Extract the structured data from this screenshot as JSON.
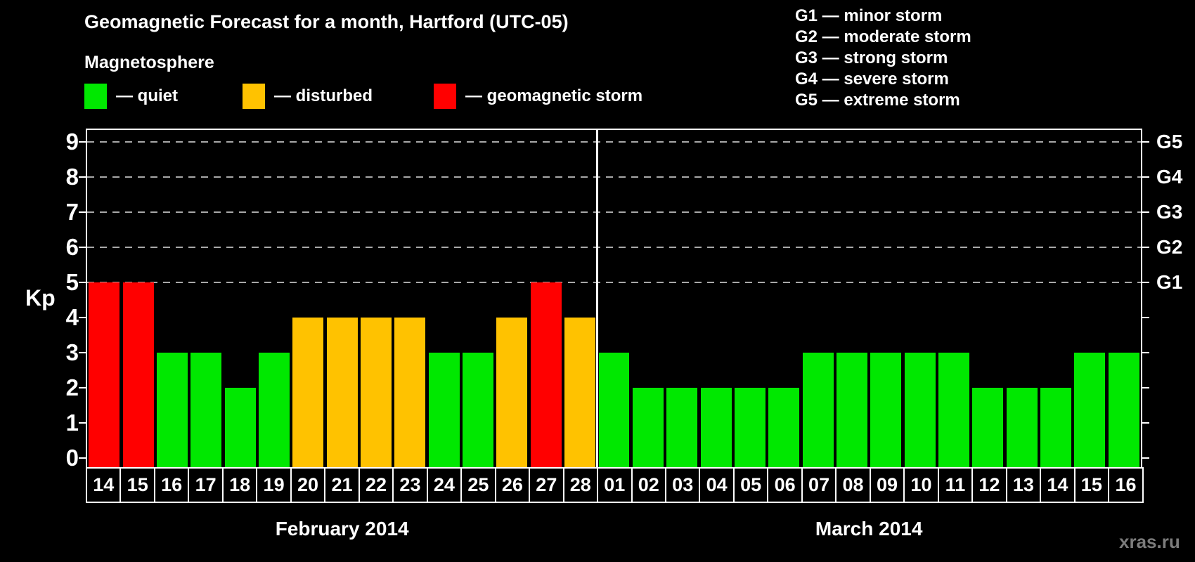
{
  "title": "Geomagnetic Forecast for a month, Hartford (UTC-05)",
  "magnetosphere_legend": {
    "heading": "Magnetosphere",
    "items": [
      {
        "name": "quiet",
        "label": "— quiet",
        "color": "#00E800"
      },
      {
        "name": "disturbed",
        "label": "— disturbed",
        "color": "#FFC200"
      },
      {
        "name": "storm",
        "label": "— geomagnetic storm",
        "color": "#FF0000"
      }
    ]
  },
  "storm_scale_legend": [
    "G1 — minor storm",
    "G2 — moderate storm",
    "G3 — strong storm",
    "G4 — severe storm",
    "G5 — extreme storm"
  ],
  "watermark": "xras.ru",
  "colors": {
    "background": "#000000",
    "axis": "#FFFFFF",
    "gridline": "#A8A8A8",
    "watermark": "#7C7C7C"
  },
  "chart_data": {
    "type": "bar",
    "title": "Geomagnetic Forecast for a month, Hartford (UTC-05)",
    "ylabel": "Kp",
    "ylim": [
      0,
      9
    ],
    "y_ticks": [
      0,
      1,
      2,
      3,
      4,
      5,
      6,
      7,
      8,
      9
    ],
    "gridlines_at": [
      5,
      6,
      7,
      8,
      9
    ],
    "grid": "dashed horizontal lines at G-storm levels only",
    "legend_position": "top",
    "right_axis_labels": [
      {
        "text": "G1",
        "level": 5
      },
      {
        "text": "G2",
        "level": 6
      },
      {
        "text": "G3",
        "level": 7
      },
      {
        "text": "G4",
        "level": 8
      },
      {
        "text": "G5",
        "level": 9
      }
    ],
    "status_colors": {
      "quiet": "#00E800",
      "disturbed": "#FFC200",
      "storm": "#FF0000"
    },
    "months": [
      {
        "label": "February 2014",
        "bars": [
          {
            "day": "14",
            "kp": 5,
            "status": "storm"
          },
          {
            "day": "15",
            "kp": 5,
            "status": "storm"
          },
          {
            "day": "16",
            "kp": 3,
            "status": "quiet"
          },
          {
            "day": "17",
            "kp": 3,
            "status": "quiet"
          },
          {
            "day": "18",
            "kp": 2,
            "status": "quiet"
          },
          {
            "day": "19",
            "kp": 3,
            "status": "quiet"
          },
          {
            "day": "20",
            "kp": 4,
            "status": "disturbed"
          },
          {
            "day": "21",
            "kp": 4,
            "status": "disturbed"
          },
          {
            "day": "22",
            "kp": 4,
            "status": "disturbed"
          },
          {
            "day": "23",
            "kp": 4,
            "status": "disturbed"
          },
          {
            "day": "24",
            "kp": 3,
            "status": "quiet"
          },
          {
            "day": "25",
            "kp": 3,
            "status": "quiet"
          },
          {
            "day": "26",
            "kp": 4,
            "status": "disturbed"
          },
          {
            "day": "27",
            "kp": 5,
            "status": "storm"
          },
          {
            "day": "28",
            "kp": 4,
            "status": "disturbed"
          }
        ]
      },
      {
        "label": "March 2014",
        "bars": [
          {
            "day": "01",
            "kp": 3,
            "status": "quiet"
          },
          {
            "day": "02",
            "kp": 2,
            "status": "quiet"
          },
          {
            "day": "03",
            "kp": 2,
            "status": "quiet"
          },
          {
            "day": "04",
            "kp": 2,
            "status": "quiet"
          },
          {
            "day": "05",
            "kp": 2,
            "status": "quiet"
          },
          {
            "day": "06",
            "kp": 2,
            "status": "quiet"
          },
          {
            "day": "07",
            "kp": 3,
            "status": "quiet"
          },
          {
            "day": "08",
            "kp": 3,
            "status": "quiet"
          },
          {
            "day": "09",
            "kp": 3,
            "status": "quiet"
          },
          {
            "day": "10",
            "kp": 3,
            "status": "quiet"
          },
          {
            "day": "11",
            "kp": 3,
            "status": "quiet"
          },
          {
            "day": "12",
            "kp": 2,
            "status": "quiet"
          },
          {
            "day": "13",
            "kp": 2,
            "status": "quiet"
          },
          {
            "day": "14",
            "kp": 2,
            "status": "quiet"
          },
          {
            "day": "15",
            "kp": 3,
            "status": "quiet"
          },
          {
            "day": "16",
            "kp": 3,
            "status": "quiet"
          }
        ]
      }
    ]
  }
}
